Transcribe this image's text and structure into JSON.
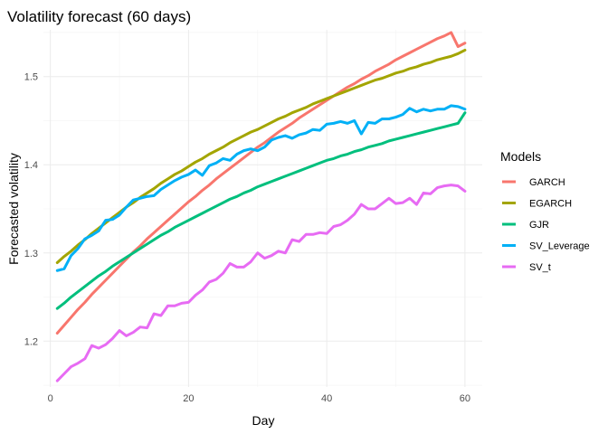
{
  "chart_data": {
    "type": "line",
    "title": "Volatility forecast (60 days)",
    "xlabel": "Day",
    "ylabel": "Forecasted volatility",
    "xlim": [
      -1,
      62.5
    ],
    "ylim": [
      1.148,
      1.553
    ],
    "xticks": [
      0,
      20,
      40,
      60
    ],
    "yticks": [
      1.2,
      1.3,
      1.4,
      1.5
    ],
    "grid": true,
    "legend": {
      "title": "Models",
      "position": "right"
    },
    "x": [
      1,
      2,
      3,
      4,
      5,
      6,
      7,
      8,
      9,
      10,
      11,
      12,
      13,
      14,
      15,
      16,
      17,
      18,
      19,
      20,
      21,
      22,
      23,
      24,
      25,
      26,
      27,
      28,
      29,
      30,
      31,
      32,
      33,
      34,
      35,
      36,
      37,
      38,
      39,
      40,
      41,
      42,
      43,
      44,
      45,
      46,
      47,
      48,
      49,
      50,
      51,
      52,
      53,
      54,
      55,
      56,
      57,
      58,
      59,
      60
    ],
    "series": [
      {
        "name": "GARCH",
        "color": "#F8766D",
        "values": [
          1.209,
          1.218,
          1.227,
          1.236,
          1.244,
          1.253,
          1.261,
          1.269,
          1.277,
          1.285,
          1.293,
          1.301,
          1.308,
          1.316,
          1.323,
          1.33,
          1.337,
          1.344,
          1.351,
          1.358,
          1.364,
          1.371,
          1.377,
          1.384,
          1.39,
          1.396,
          1.402,
          1.408,
          1.414,
          1.42,
          1.425,
          1.431,
          1.437,
          1.442,
          1.447,
          1.453,
          1.458,
          1.463,
          1.468,
          1.473,
          1.478,
          1.483,
          1.488,
          1.492,
          1.497,
          1.501,
          1.506,
          1.51,
          1.514,
          1.519,
          1.523,
          1.527,
          1.531,
          1.535,
          1.539,
          1.543,
          1.546,
          1.55,
          1.534,
          1.538
        ]
      },
      {
        "name": "EGARCH",
        "color": "#A3A500",
        "values": [
          1.289,
          1.296,
          1.302,
          1.309,
          1.315,
          1.322,
          1.328,
          1.334,
          1.34,
          1.346,
          1.352,
          1.357,
          1.363,
          1.368,
          1.373,
          1.379,
          1.384,
          1.389,
          1.393,
          1.398,
          1.403,
          1.407,
          1.412,
          1.416,
          1.42,
          1.425,
          1.429,
          1.433,
          1.437,
          1.44,
          1.444,
          1.448,
          1.452,
          1.455,
          1.459,
          1.462,
          1.465,
          1.469,
          1.472,
          1.475,
          1.478,
          1.481,
          1.484,
          1.487,
          1.49,
          1.493,
          1.496,
          1.498,
          1.501,
          1.504,
          1.506,
          1.509,
          1.511,
          1.514,
          1.516,
          1.519,
          1.521,
          1.523,
          1.526,
          1.53
        ]
      },
      {
        "name": "GJR",
        "color": "#00BF7D",
        "values": [
          1.237,
          1.243,
          1.25,
          1.256,
          1.262,
          1.268,
          1.274,
          1.279,
          1.285,
          1.29,
          1.295,
          1.3,
          1.305,
          1.31,
          1.315,
          1.32,
          1.324,
          1.329,
          1.333,
          1.337,
          1.341,
          1.345,
          1.349,
          1.353,
          1.357,
          1.361,
          1.364,
          1.368,
          1.371,
          1.375,
          1.378,
          1.381,
          1.384,
          1.387,
          1.39,
          1.393,
          1.396,
          1.399,
          1.402,
          1.405,
          1.407,
          1.41,
          1.412,
          1.415,
          1.417,
          1.42,
          1.422,
          1.424,
          1.427,
          1.429,
          1.431,
          1.433,
          1.435,
          1.437,
          1.439,
          1.441,
          1.443,
          1.445,
          1.447,
          1.459
        ]
      },
      {
        "name": "SV_Leverage",
        "color": "#00B0F6",
        "values": [
          1.28,
          1.282,
          1.297,
          1.305,
          1.316,
          1.32,
          1.325,
          1.337,
          1.338,
          1.343,
          1.352,
          1.36,
          1.362,
          1.364,
          1.365,
          1.372,
          1.377,
          1.382,
          1.386,
          1.389,
          1.394,
          1.388,
          1.399,
          1.402,
          1.407,
          1.405,
          1.412,
          1.416,
          1.418,
          1.416,
          1.42,
          1.428,
          1.431,
          1.433,
          1.43,
          1.434,
          1.436,
          1.44,
          1.439,
          1.446,
          1.447,
          1.449,
          1.447,
          1.45,
          1.435,
          1.448,
          1.447,
          1.452,
          1.452,
          1.454,
          1.457,
          1.464,
          1.46,
          1.463,
          1.461,
          1.463,
          1.463,
          1.467,
          1.466,
          1.463
        ]
      },
      {
        "name": "SV_t",
        "color": "#E76BF3",
        "values": [
          1.155,
          1.163,
          1.171,
          1.175,
          1.18,
          1.195,
          1.192,
          1.196,
          1.203,
          1.212,
          1.206,
          1.21,
          1.216,
          1.215,
          1.231,
          1.229,
          1.24,
          1.24,
          1.243,
          1.244,
          1.252,
          1.258,
          1.267,
          1.27,
          1.277,
          1.288,
          1.284,
          1.284,
          1.29,
          1.3,
          1.294,
          1.297,
          1.302,
          1.3,
          1.315,
          1.313,
          1.321,
          1.321,
          1.323,
          1.322,
          1.33,
          1.332,
          1.337,
          1.344,
          1.355,
          1.35,
          1.35,
          1.356,
          1.362,
          1.356,
          1.357,
          1.362,
          1.355,
          1.368,
          1.367,
          1.374,
          1.376,
          1.377,
          1.376,
          1.37
        ]
      }
    ]
  }
}
